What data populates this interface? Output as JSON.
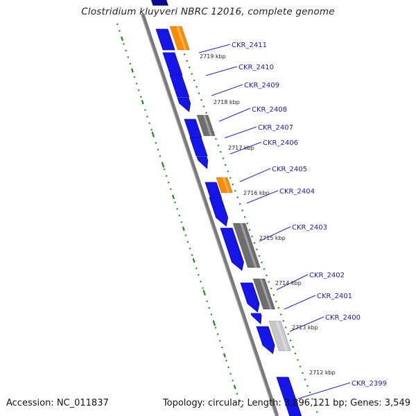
{
  "title": "Clostridium kluyveri NBRC 12016, complete genome",
  "footer": {
    "accession": "Accession: NC_011837",
    "topology": "Topology: circular; Length: 3,896,121 bp; Genes: 3,549"
  },
  "colors": {
    "forward_cds": "#1515e8",
    "forward_cds_dark": "#0a0a90",
    "orange_feature": "#ff8c00",
    "gray_feature": "#6e6e6e",
    "light_gray_feature": "#c8c8c8",
    "backbone": "#808080",
    "tick": "#1a8a1a",
    "label_line": "#2020e0"
  },
  "kbp_ticks": [
    "2719 kbp",
    "2718 kbp",
    "2717 kbp",
    "2716 kbp",
    "2715 kbp",
    "2714 kbp",
    "2713 kbp",
    "2712 kbp"
  ],
  "gene_labels": [
    "CKR_2411",
    "CKR_2410",
    "CKR_2409",
    "CKR_2408",
    "CKR_2407",
    "CKR_2406",
    "CKR_2405",
    "CKR_2404",
    "CKR_2403",
    "CKR_2402",
    "CKR_2401",
    "CKR_2400",
    "CKR_2399"
  ]
}
